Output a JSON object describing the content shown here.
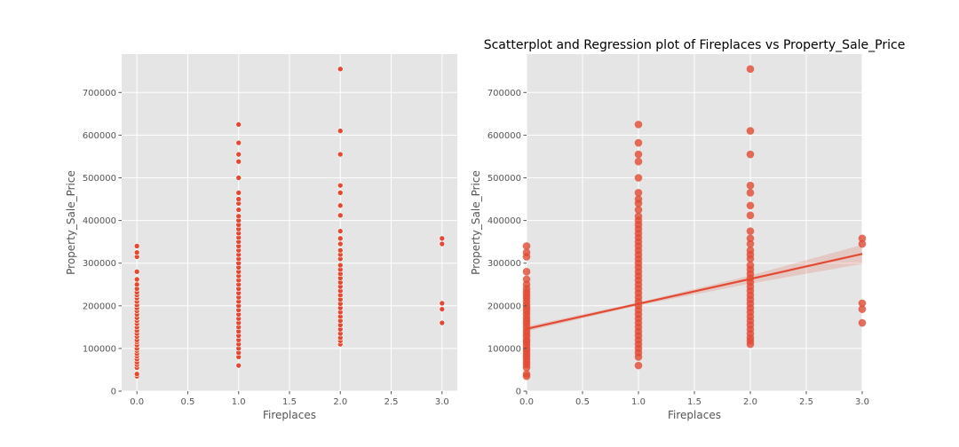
{
  "chart_data": [
    {
      "type": "scatter",
      "title": "",
      "xlabel": "Fireplaces",
      "ylabel": "Property_Sale_Price",
      "xlim": [
        -0.15,
        3.15
      ],
      "ylim": [
        0,
        790000
      ],
      "xticks": [
        0.0,
        0.5,
        1.0,
        1.5,
        2.0,
        2.5,
        3.0
      ],
      "xtick_labels": [
        "0.0",
        "0.5",
        "1.0",
        "1.5",
        "2.0",
        "2.5",
        "3.0"
      ],
      "yticks": [
        0,
        100000,
        200000,
        300000,
        400000,
        500000,
        600000,
        700000
      ],
      "ytick_labels": [
        "0",
        "100000",
        "200000",
        "300000",
        "400000",
        "500000",
        "600000",
        "700000"
      ],
      "grid": true,
      "series": [
        {
          "color": "#e24a33",
          "points": [
            [
              0,
              35000
            ],
            [
              0,
              40000
            ],
            [
              0,
              55000
            ],
            [
              0,
              62000
            ],
            [
              0,
              68000
            ],
            [
              0,
              75000
            ],
            [
              0,
              82000
            ],
            [
              0,
              88000
            ],
            [
              0,
              95000
            ],
            [
              0,
              100000
            ],
            [
              0,
              108000
            ],
            [
              0,
              115000
            ],
            [
              0,
              120000
            ],
            [
              0,
              128000
            ],
            [
              0,
              135000
            ],
            [
              0,
              142000
            ],
            [
              0,
              150000
            ],
            [
              0,
              158000
            ],
            [
              0,
              165000
            ],
            [
              0,
              172000
            ],
            [
              0,
              180000
            ],
            [
              0,
              188000
            ],
            [
              0,
              195000
            ],
            [
              0,
              202000
            ],
            [
              0,
              210000
            ],
            [
              0,
              218000
            ],
            [
              0,
              225000
            ],
            [
              0,
              232000
            ],
            [
              0,
              240000
            ],
            [
              0,
              250000
            ],
            [
              0,
              262000
            ],
            [
              0,
              280000
            ],
            [
              0,
              315000
            ],
            [
              0,
              325000
            ],
            [
              0,
              340000
            ],
            [
              1,
              60000
            ],
            [
              1,
              80000
            ],
            [
              1,
              90000
            ],
            [
              1,
              100000
            ],
            [
              1,
              110000
            ],
            [
              1,
              120000
            ],
            [
              1,
              130000
            ],
            [
              1,
              140000
            ],
            [
              1,
              150000
            ],
            [
              1,
              160000
            ],
            [
              1,
              170000
            ],
            [
              1,
              180000
            ],
            [
              1,
              190000
            ],
            [
              1,
              200000
            ],
            [
              1,
              210000
            ],
            [
              1,
              220000
            ],
            [
              1,
              230000
            ],
            [
              1,
              240000
            ],
            [
              1,
              250000
            ],
            [
              1,
              260000
            ],
            [
              1,
              270000
            ],
            [
              1,
              280000
            ],
            [
              1,
              290000
            ],
            [
              1,
              300000
            ],
            [
              1,
              310000
            ],
            [
              1,
              320000
            ],
            [
              1,
              330000
            ],
            [
              1,
              340000
            ],
            [
              1,
              350000
            ],
            [
              1,
              360000
            ],
            [
              1,
              370000
            ],
            [
              1,
              380000
            ],
            [
              1,
              390000
            ],
            [
              1,
              400000
            ],
            [
              1,
              410000
            ],
            [
              1,
              425000
            ],
            [
              1,
              440000
            ],
            [
              1,
              450000
            ],
            [
              1,
              465000
            ],
            [
              1,
              500000
            ],
            [
              1,
              538000
            ],
            [
              1,
              555000
            ],
            [
              1,
              582000
            ],
            [
              1,
              625000
            ],
            [
              2,
              110000
            ],
            [
              2,
              118000
            ],
            [
              2,
              125000
            ],
            [
              2,
              135000
            ],
            [
              2,
              145000
            ],
            [
              2,
              155000
            ],
            [
              2,
              165000
            ],
            [
              2,
              175000
            ],
            [
              2,
              185000
            ],
            [
              2,
              195000
            ],
            [
              2,
              205000
            ],
            [
              2,
              215000
            ],
            [
              2,
              225000
            ],
            [
              2,
              235000
            ],
            [
              2,
              245000
            ],
            [
              2,
              255000
            ],
            [
              2,
              265000
            ],
            [
              2,
              275000
            ],
            [
              2,
              285000
            ],
            [
              2,
              295000
            ],
            [
              2,
              310000
            ],
            [
              2,
              320000
            ],
            [
              2,
              330000
            ],
            [
              2,
              345000
            ],
            [
              2,
              358000
            ],
            [
              2,
              375000
            ],
            [
              2,
              412000
            ],
            [
              2,
              435000
            ],
            [
              2,
              465000
            ],
            [
              2,
              482000
            ],
            [
              2,
              555000
            ],
            [
              2,
              610000
            ],
            [
              2,
              755000
            ],
            [
              3,
              160000
            ],
            [
              3,
              192000
            ],
            [
              3,
              206000
            ],
            [
              3,
              345000
            ],
            [
              3,
              358000
            ]
          ]
        }
      ]
    },
    {
      "type": "scatter",
      "title": "Scatterplot and Regression plot of Fireplaces vs Property_Sale_Price",
      "xlabel": "Fireplaces",
      "ylabel": "Property_Sale_Price",
      "xlim": [
        0,
        3
      ],
      "ylim": [
        0,
        790000
      ],
      "xticks": [
        0.0,
        0.5,
        1.0,
        1.5,
        2.0,
        2.5,
        3.0
      ],
      "xtick_labels": [
        "0.0",
        "0.5",
        "1.0",
        "1.5",
        "2.0",
        "2.5",
        "3.0"
      ],
      "yticks": [
        0,
        100000,
        200000,
        300000,
        400000,
        500000,
        600000,
        700000
      ],
      "ytick_labels": [
        "0",
        "100000",
        "200000",
        "300000",
        "400000",
        "500000",
        "600000",
        "700000"
      ],
      "grid": true,
      "regression": {
        "intercept": 146000,
        "slope": 58500,
        "ci_low": [
          [
            0,
            140000
          ],
          [
            1,
            201000
          ],
          [
            2,
            252000
          ],
          [
            3,
            298000
          ]
        ],
        "ci_high": [
          [
            0,
            152000
          ],
          [
            1,
            208000
          ],
          [
            2,
            271000
          ],
          [
            3,
            343000
          ]
        ],
        "color": "#e24a33"
      },
      "series": [
        {
          "color": "#e24a33",
          "points": [
            [
              0,
              35000
            ],
            [
              0,
              40000
            ],
            [
              0,
              55000
            ],
            [
              0,
              62000
            ],
            [
              0,
              68000
            ],
            [
              0,
              75000
            ],
            [
              0,
              82000
            ],
            [
              0,
              88000
            ],
            [
              0,
              95000
            ],
            [
              0,
              100000
            ],
            [
              0,
              108000
            ],
            [
              0,
              115000
            ],
            [
              0,
              120000
            ],
            [
              0,
              128000
            ],
            [
              0,
              135000
            ],
            [
              0,
              142000
            ],
            [
              0,
              150000
            ],
            [
              0,
              158000
            ],
            [
              0,
              165000
            ],
            [
              0,
              172000
            ],
            [
              0,
              180000
            ],
            [
              0,
              188000
            ],
            [
              0,
              195000
            ],
            [
              0,
              202000
            ],
            [
              0,
              210000
            ],
            [
              0,
              218000
            ],
            [
              0,
              225000
            ],
            [
              0,
              232000
            ],
            [
              0,
              240000
            ],
            [
              0,
              250000
            ],
            [
              0,
              262000
            ],
            [
              0,
              280000
            ],
            [
              0,
              315000
            ],
            [
              0,
              325000
            ],
            [
              0,
              340000
            ],
            [
              1,
              60000
            ],
            [
              1,
              80000
            ],
            [
              1,
              90000
            ],
            [
              1,
              100000
            ],
            [
              1,
              110000
            ],
            [
              1,
              120000
            ],
            [
              1,
              130000
            ],
            [
              1,
              140000
            ],
            [
              1,
              150000
            ],
            [
              1,
              160000
            ],
            [
              1,
              170000
            ],
            [
              1,
              180000
            ],
            [
              1,
              190000
            ],
            [
              1,
              200000
            ],
            [
              1,
              210000
            ],
            [
              1,
              220000
            ],
            [
              1,
              230000
            ],
            [
              1,
              240000
            ],
            [
              1,
              250000
            ],
            [
              1,
              260000
            ],
            [
              1,
              270000
            ],
            [
              1,
              280000
            ],
            [
              1,
              290000
            ],
            [
              1,
              300000
            ],
            [
              1,
              310000
            ],
            [
              1,
              320000
            ],
            [
              1,
              330000
            ],
            [
              1,
              340000
            ],
            [
              1,
              350000
            ],
            [
              1,
              360000
            ],
            [
              1,
              370000
            ],
            [
              1,
              380000
            ],
            [
              1,
              390000
            ],
            [
              1,
              400000
            ],
            [
              1,
              410000
            ],
            [
              1,
              425000
            ],
            [
              1,
              440000
            ],
            [
              1,
              450000
            ],
            [
              1,
              465000
            ],
            [
              1,
              500000
            ],
            [
              1,
              538000
            ],
            [
              1,
              555000
            ],
            [
              1,
              582000
            ],
            [
              1,
              625000
            ],
            [
              2,
              110000
            ],
            [
              2,
              118000
            ],
            [
              2,
              125000
            ],
            [
              2,
              135000
            ],
            [
              2,
              145000
            ],
            [
              2,
              155000
            ],
            [
              2,
              165000
            ],
            [
              2,
              175000
            ],
            [
              2,
              185000
            ],
            [
              2,
              195000
            ],
            [
              2,
              205000
            ],
            [
              2,
              215000
            ],
            [
              2,
              225000
            ],
            [
              2,
              235000
            ],
            [
              2,
              245000
            ],
            [
              2,
              255000
            ],
            [
              2,
              265000
            ],
            [
              2,
              275000
            ],
            [
              2,
              285000
            ],
            [
              2,
              295000
            ],
            [
              2,
              310000
            ],
            [
              2,
              320000
            ],
            [
              2,
              330000
            ],
            [
              2,
              345000
            ],
            [
              2,
              358000
            ],
            [
              2,
              375000
            ],
            [
              2,
              412000
            ],
            [
              2,
              435000
            ],
            [
              2,
              465000
            ],
            [
              2,
              482000
            ],
            [
              2,
              555000
            ],
            [
              2,
              610000
            ],
            [
              2,
              755000
            ],
            [
              3,
              160000
            ],
            [
              3,
              192000
            ],
            [
              3,
              206000
            ],
            [
              3,
              345000
            ],
            [
              3,
              358000
            ]
          ]
        }
      ]
    }
  ]
}
